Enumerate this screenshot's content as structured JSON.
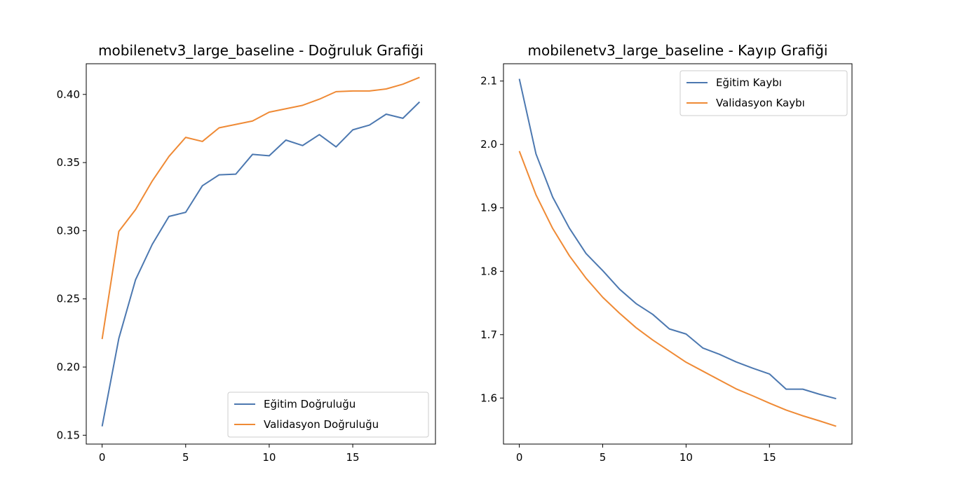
{
  "colors": {
    "train": "#4c78b0",
    "val": "#ef8a35",
    "axis": "#000000",
    "background": "#ffffff"
  },
  "chart_data": [
    {
      "type": "line",
      "title": "mobilenetv3_large_baseline - Doğruluk Grafiği",
      "xlabel": "",
      "ylabel": "",
      "xlim": [
        -0.95,
        19.95
      ],
      "ylim": [
        0.1435,
        0.4225
      ],
      "xticks": [
        0,
        5,
        10,
        15
      ],
      "yticks": [
        0.15,
        0.2,
        0.25,
        0.3,
        0.35,
        0.4
      ],
      "ytick_labels": [
        "0.15",
        "0.20",
        "0.25",
        "0.30",
        "0.35",
        "0.40"
      ],
      "legend_position": "lower-right",
      "grid": false,
      "x": [
        0,
        1,
        2,
        3,
        4,
        5,
        6,
        7,
        8,
        9,
        10,
        11,
        12,
        13,
        14,
        15,
        16,
        17,
        18,
        19
      ],
      "series": [
        {
          "name": "Eğitim Doğruluğu",
          "color": "#4c78b0",
          "values": [
            0.1565,
            0.221,
            0.264,
            0.29,
            0.3105,
            0.3135,
            0.333,
            0.341,
            0.3415,
            0.356,
            0.355,
            0.3665,
            0.3625,
            0.3705,
            0.3615,
            0.374,
            0.3775,
            0.3855,
            0.3825,
            0.3945
          ]
        },
        {
          "name": "Validasyon Doğruluğu",
          "color": "#ef8a35",
          "values": [
            0.2205,
            0.2995,
            0.3155,
            0.3365,
            0.3545,
            0.3685,
            0.3655,
            0.3755,
            0.378,
            0.3805,
            0.387,
            0.3895,
            0.392,
            0.3965,
            0.402,
            0.4025,
            0.4025,
            0.404,
            0.4075,
            0.4125
          ]
        }
      ]
    },
    {
      "type": "line",
      "title": "mobilenetv3_large_baseline - Kayıp Grafiği",
      "xlabel": "",
      "ylabel": "",
      "xlim": [
        -0.95,
        19.95
      ],
      "ylim": [
        1.5274,
        2.1273
      ],
      "xticks": [
        0,
        5,
        10,
        15
      ],
      "yticks": [
        1.6,
        1.7,
        1.8,
        1.9,
        2.0,
        2.1
      ],
      "ytick_labels": [
        "1.6",
        "1.7",
        "1.8",
        "1.9",
        "2.0",
        "2.1"
      ],
      "legend_position": "upper-right",
      "grid": false,
      "x": [
        0,
        1,
        2,
        3,
        4,
        5,
        6,
        7,
        8,
        9,
        10,
        11,
        12,
        13,
        14,
        15,
        16,
        17,
        18,
        19
      ],
      "series": [
        {
          "name": "Eğitim Kaybı",
          "color": "#4c78b0",
          "values": [
            2.1035,
            1.985,
            1.917,
            1.868,
            1.828,
            1.801,
            1.772,
            1.749,
            1.732,
            1.709,
            1.701,
            1.679,
            1.669,
            1.657,
            1.647,
            1.638,
            1.614,
            1.614,
            1.606,
            1.599
          ]
        },
        {
          "name": "Validasyon Kaybı",
          "color": "#ef8a35",
          "values": [
            1.9895,
            1.9205,
            1.8675,
            1.8245,
            1.789,
            1.759,
            1.734,
            1.711,
            1.6915,
            1.674,
            1.6565,
            1.6425,
            1.6285,
            1.6145,
            1.6035,
            1.592,
            1.581,
            1.572,
            1.564,
            1.5555
          ]
        }
      ]
    }
  ]
}
